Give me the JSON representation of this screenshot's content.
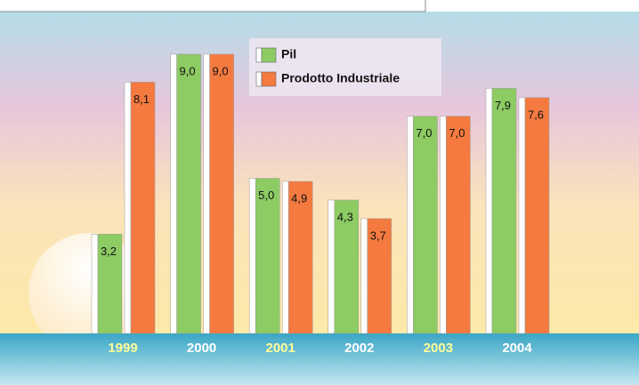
{
  "chart_data": {
    "type": "bar",
    "categories": [
      "1999",
      "2000",
      "2001",
      "2002",
      "2003",
      "2004"
    ],
    "category_label_colors": [
      "#ffff99",
      "#ffffff",
      "#ffff99",
      "#ffffff",
      "#ffff99",
      "#ffffff"
    ],
    "series": [
      {
        "name": "Pil",
        "color": "#8dcb63",
        "values": [
          3.2,
          9.0,
          5.0,
          4.3,
          7.0,
          7.9
        ],
        "value_labels": [
          "3,2",
          "9,0",
          "5,0",
          "4,3",
          "7,0",
          "7,9"
        ]
      },
      {
        "name": "Prodotto Industriale",
        "color": "#f47a40",
        "values": [
          8.1,
          9.0,
          4.9,
          3.7,
          7.0,
          7.6
        ],
        "value_labels": [
          "8,1",
          "9,0",
          "4,9",
          "3,7",
          "7,0",
          "7,6"
        ]
      }
    ],
    "legend": "top"
  }
}
